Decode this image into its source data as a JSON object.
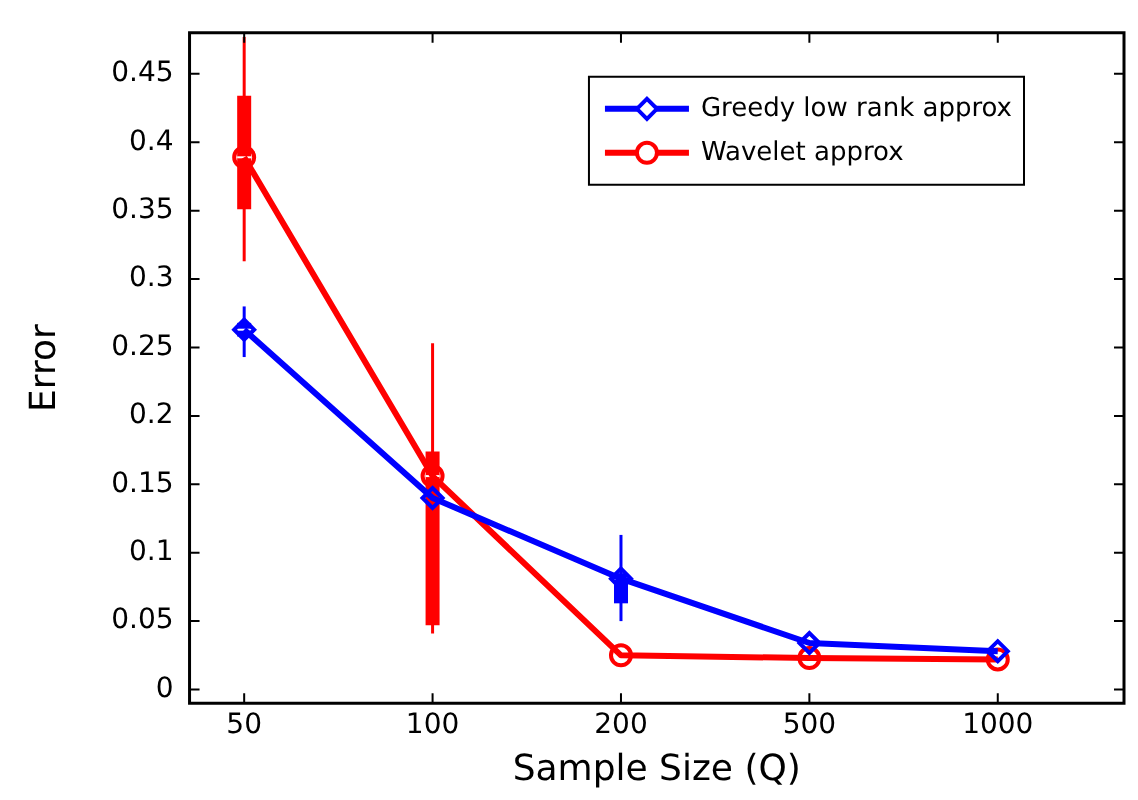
{
  "chart_data": {
    "type": "line",
    "xlabel": "Sample Size (Q)",
    "ylabel": "Error",
    "categories": [
      "50",
      "100",
      "200",
      "500",
      "1000"
    ],
    "ylim": [
      -0.01,
      0.48
    ],
    "yticks": [
      0,
      0.05,
      0.1,
      0.15,
      0.2,
      0.25,
      0.3,
      0.35,
      0.4,
      0.45
    ],
    "grid": false,
    "legend": "top right",
    "line_style": "solid",
    "series": [
      {
        "type": "box",
        "color": "#0000ff",
        "boxes": [
          {
            "low": 0.243,
            "q1": 0.258,
            "median": 0.263,
            "q3": 0.268,
            "high": 0.28
          },
          null,
          {
            "low": 0.05,
            "q1": 0.063,
            "median": 0.081,
            "q3": 0.085,
            "high": 0.113
          },
          null,
          null
        ]
      },
      {
        "type": "box",
        "color": "#ff0000",
        "boxes": [
          {
            "low": 0.313,
            "q1": 0.351,
            "median": 0.389,
            "q3": 0.434,
            "high": 0.477
          },
          {
            "low": 0.041,
            "q1": 0.047,
            "median": 0.156,
            "q3": 0.174,
            "high": 0.253
          },
          null,
          null,
          null
        ]
      },
      {
        "name": "Greedy low rank approx",
        "color": "#0000ff",
        "marker": "diamond",
        "values": [
          0.263,
          0.14,
          0.081,
          0.034,
          0.028
        ]
      },
      {
        "name": "Wavelet approx",
        "color": "#ff0000",
        "marker": "circle",
        "values": [
          0.389,
          0.156,
          0.025,
          0.023,
          0.022
        ]
      }
    ]
  }
}
